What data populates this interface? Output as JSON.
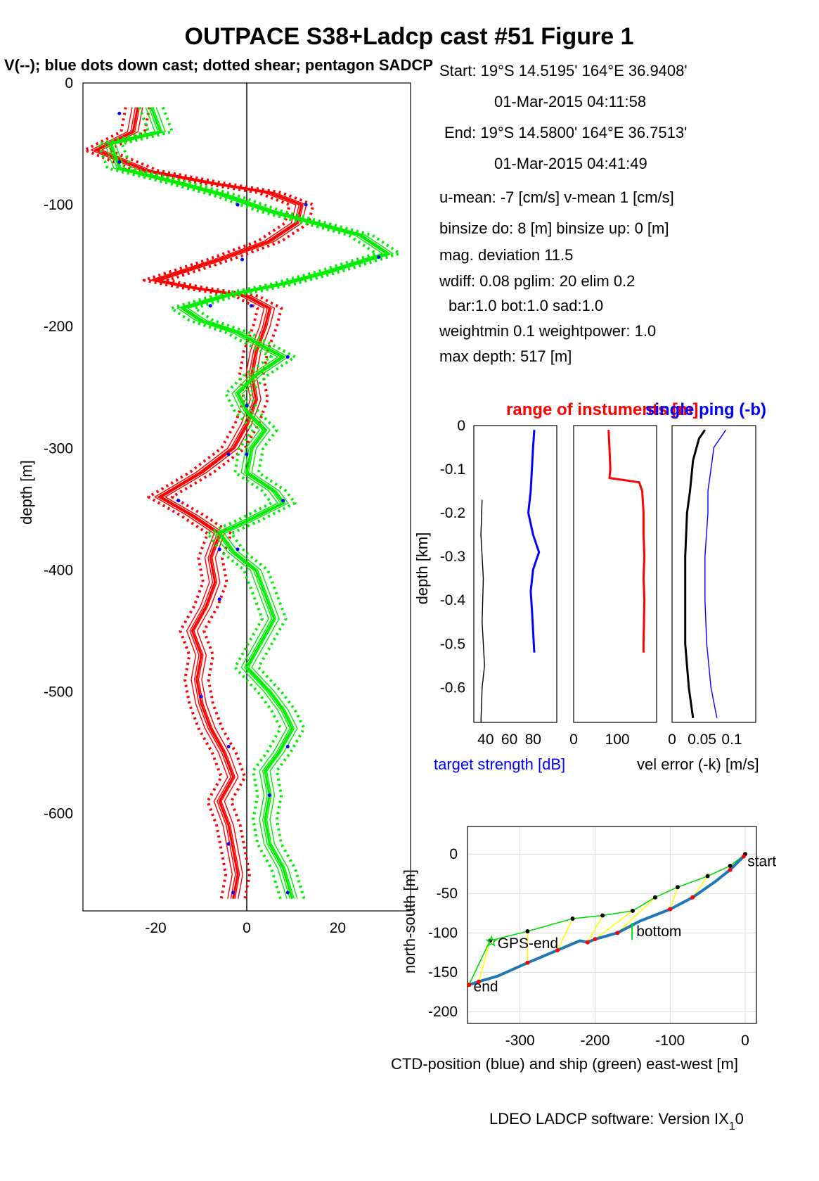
{
  "figure": {
    "title": "OUTPACE S38+Ladcp cast #51  Figure 1",
    "subtitle": "V(--); blue dots down cast; dotted shear; pentagon SADCP",
    "footer": "LDEO LADCP software: Version IX",
    "footer_sub": "1",
    "footer_tail": "0"
  },
  "info": [
    "Start:  19°S 14.5195'      164°E 36.9408'",
    "01-Mar-2015 04:11:58",
    "End:  19°S 14.5800'      164°E 36.7513'",
    "01-Mar-2015 04:41:49",
    "u-mean:  -7 [cm/s]     v-mean   1 [cm/s]",
    "binsize do: 8 [m]  binsize up:  0 [m]",
    "mag. deviation 11.5",
    "wdiff: 0.08  pglim: 20  elim 0.2",
    "bar:1.0 bot:1.0 sad:1.0",
    "weightmin 0.1  weightpower: 1.0",
    "max depth: 517 [m]"
  ],
  "colors": {
    "u": "#ff0000",
    "v": "#00ee00",
    "dots": "#0000ff",
    "ctd": "#1f77b4",
    "ship": "#00dd00",
    "link": "#ffff00"
  },
  "chart_data": [
    {
      "id": "velocity",
      "type": "line",
      "ylabel": "depth [m]",
      "xlim": [
        -36,
        36
      ],
      "ylim": [
        -680,
        0
      ],
      "xticks": [
        -20,
        0,
        20
      ],
      "yticks": [
        0,
        -100,
        -200,
        -300,
        -400,
        -500,
        -600
      ],
      "series": [
        {
          "color": "red",
          "points": [
            [
              -24,
              -20
            ],
            [
              -25,
              -40
            ],
            [
              -33,
              -55
            ],
            [
              -22,
              -72
            ],
            [
              -8,
              -82
            ],
            [
              5,
              -90
            ],
            [
              12,
              -100
            ],
            [
              11,
              -115
            ],
            [
              5,
              -130
            ],
            [
              -6,
              -145
            ],
            [
              -20,
              -162
            ],
            [
              -12,
              -168
            ],
            [
              0,
              -175
            ],
            [
              5,
              -185
            ],
            [
              4,
              -200
            ],
            [
              2,
              -220
            ],
            [
              1,
              -240
            ],
            [
              2,
              -260
            ],
            [
              0,
              -280
            ],
            [
              -3,
              -300
            ],
            [
              -10,
              -320
            ],
            [
              -19,
              -340
            ],
            [
              -12,
              -355
            ],
            [
              -6,
              -370
            ],
            [
              -8,
              -390
            ],
            [
              -7,
              -410
            ],
            [
              -9,
              -430
            ],
            [
              -12,
              -450
            ],
            [
              -10,
              -470
            ],
            [
              -11,
              -490
            ],
            [
              -10,
              -510
            ],
            [
              -8,
              -530
            ],
            [
              -5,
              -550
            ],
            [
              -3,
              -570
            ],
            [
              -6,
              -590
            ],
            [
              -4,
              -610
            ],
            [
              -3,
              -630
            ],
            [
              -2,
              -650
            ],
            [
              -3,
              -670
            ]
          ]
        },
        {
          "color": "green",
          "points": [
            [
              -21,
              -20
            ],
            [
              -19,
              -40
            ],
            [
              -30,
              -50
            ],
            [
              -28,
              -70
            ],
            [
              -15,
              -82
            ],
            [
              -5,
              -92
            ],
            [
              5,
              -105
            ],
            [
              15,
              -115
            ],
            [
              25,
              -125
            ],
            [
              31,
              -140
            ],
            [
              18,
              -155
            ],
            [
              8,
              -165
            ],
            [
              -5,
              -175
            ],
            [
              -14,
              -185
            ],
            [
              -10,
              -195
            ],
            [
              -2,
              -205
            ],
            [
              3,
              -215
            ],
            [
              8,
              -225
            ],
            [
              2,
              -240
            ],
            [
              -2,
              -255
            ],
            [
              0,
              -270
            ],
            [
              4,
              -285
            ],
            [
              1,
              -300
            ],
            [
              0,
              -320
            ],
            [
              6,
              -335
            ],
            [
              8,
              -345
            ],
            [
              0,
              -360
            ],
            [
              -6,
              -370
            ],
            [
              -3,
              -385
            ],
            [
              2,
              -400
            ],
            [
              4,
              -420
            ],
            [
              6,
              -440
            ],
            [
              3,
              -460
            ],
            [
              0,
              -480
            ],
            [
              5,
              -500
            ],
            [
              8,
              -515
            ],
            [
              10,
              -530
            ],
            [
              7,
              -550
            ],
            [
              4,
              -565
            ],
            [
              5,
              -585
            ],
            [
              4,
              -605
            ],
            [
              5,
              -625
            ],
            [
              8,
              -645
            ],
            [
              10,
              -670
            ]
          ]
        }
      ],
      "dots": [
        [
          -28,
          -25
        ],
        [
          -28,
          -65
        ],
        [
          -2,
          -100
        ],
        [
          13,
          -100
        ],
        [
          -1,
          -145
        ],
        [
          29,
          -143
        ],
        [
          -8,
          -183
        ],
        [
          1,
          -183
        ],
        [
          9,
          -225
        ],
        [
          0,
          -265
        ],
        [
          -4,
          -305
        ],
        [
          0,
          -305
        ],
        [
          -15,
          -343
        ],
        [
          8,
          -343
        ],
        [
          -6,
          -383
        ],
        [
          -2,
          -383
        ],
        [
          -6,
          -424
        ],
        [
          -10,
          -504
        ],
        [
          -4,
          -545
        ],
        [
          9,
          -545
        ],
        [
          5,
          -585
        ],
        [
          -4,
          -625
        ],
        [
          -3,
          -665
        ],
        [
          9,
          -665
        ]
      ]
    },
    {
      "id": "target-strength",
      "type": "line",
      "ylabel": "depth [km]",
      "xlabel": "target strength [dB]",
      "xlim": [
        30,
        100
      ],
      "ylim": [
        -0.68,
        0
      ],
      "xticks": [
        "40",
        "60",
        "80"
      ],
      "yticks": [
        "0",
        "-0.1",
        "-0.2",
        "-0.3",
        "-0.4",
        "-0.5",
        "-0.6"
      ],
      "series": [
        {
          "color": "blue",
          "points": [
            [
              81,
              -0.01
            ],
            [
              80,
              -0.05
            ],
            [
              79,
              -0.1
            ],
            [
              78,
              -0.15
            ],
            [
              76,
              -0.2
            ],
            [
              80,
              -0.25
            ],
            [
              85,
              -0.29
            ],
            [
              80,
              -0.33
            ],
            [
              78,
              -0.38
            ],
            [
              79,
              -0.42
            ],
            [
              80,
              -0.47
            ],
            [
              81,
              -0.52
            ]
          ]
        },
        {
          "color": "black",
          "points": [
            [
              37,
              -0.17
            ],
            [
              36,
              -0.25
            ],
            [
              38,
              -0.35
            ],
            [
              37,
              -0.45
            ],
            [
              39,
              -0.55
            ],
            [
              37,
              -0.6
            ],
            [
              36,
              -0.68
            ]
          ]
        }
      ]
    },
    {
      "id": "range",
      "type": "line",
      "xlabel": "range of instuments [m]",
      "xlim": [
        0,
        190
      ],
      "ylim": [
        -0.68,
        0
      ],
      "xticks": [
        "0",
        "100"
      ],
      "series": [
        {
          "color": "red",
          "points": [
            [
              80,
              -0.01
            ],
            [
              82,
              -0.05
            ],
            [
              84,
              -0.1
            ],
            [
              82,
              -0.12
            ],
            [
              150,
              -0.13
            ],
            [
              157,
              -0.15
            ],
            [
              160,
              -0.2
            ],
            [
              160,
              -0.25
            ],
            [
              162,
              -0.3
            ],
            [
              160,
              -0.35
            ],
            [
              162,
              -0.4
            ],
            [
              160,
              -0.5
            ],
            [
              160,
              -0.52
            ]
          ]
        }
      ]
    },
    {
      "id": "vel-error",
      "type": "line",
      "xlabel": "vel error (-k) [m/s]",
      "title": "single ping (-b)",
      "xlim": [
        0,
        0.14
      ],
      "ylim": [
        -0.68,
        0
      ],
      "xticks": [
        "0",
        "0.05",
        "0.1"
      ],
      "series": [
        {
          "color": "black",
          "points": [
            [
              0.055,
              -0.01
            ],
            [
              0.045,
              -0.03
            ],
            [
              0.035,
              -0.08
            ],
            [
              0.03,
              -0.15
            ],
            [
              0.025,
              -0.2
            ],
            [
              0.022,
              -0.3
            ],
            [
              0.022,
              -0.4
            ],
            [
              0.022,
              -0.5
            ],
            [
              0.028,
              -0.6
            ],
            [
              0.035,
              -0.67
            ]
          ]
        },
        {
          "color": "blue",
          "points": [
            [
              0.09,
              -0.01
            ],
            [
              0.07,
              -0.05
            ],
            [
              0.065,
              -0.1
            ],
            [
              0.06,
              -0.15
            ],
            [
              0.06,
              -0.2
            ],
            [
              0.055,
              -0.3
            ],
            [
              0.055,
              -0.4
            ],
            [
              0.058,
              -0.5
            ],
            [
              0.065,
              -0.6
            ],
            [
              0.075,
              -0.67
            ]
          ]
        }
      ]
    },
    {
      "id": "track",
      "type": "line",
      "xlabel": "CTD-position (blue) and ship (green) east-west [m]",
      "ylabel": "north-south [m]",
      "xlim": [
        -370,
        15
      ],
      "ylim": [
        -215,
        35
      ],
      "xticks": [
        "-300",
        "-200",
        "-100",
        "0"
      ],
      "yticks": [
        "0",
        "-50",
        "-100",
        "-150",
        "-200"
      ],
      "series": [
        {
          "color": "blue",
          "name": "CTD",
          "points": [
            [
              -2,
              -3
            ],
            [
              -20,
              -20
            ],
            [
              -40,
              -35
            ],
            [
              -70,
              -55
            ],
            [
              -100,
              -70
            ],
            [
              -140,
              -85
            ],
            [
              -170,
              -100
            ],
            [
              -200,
              -108
            ],
            [
              -210,
              -112
            ],
            [
              -220,
              -110
            ],
            [
              -250,
              -122
            ],
            [
              -290,
              -138
            ],
            [
              -330,
              -155
            ],
            [
              -355,
              -162
            ],
            [
              -368,
              -166
            ]
          ]
        },
        {
          "color": "green",
          "name": "ship",
          "points": [
            [
              0,
              0
            ],
            [
              -20,
              -15
            ],
            [
              -50,
              -28
            ],
            [
              -90,
              -42
            ],
            [
              -120,
              -55
            ],
            [
              -150,
              -72
            ],
            [
              -190,
              -78
            ],
            [
              -230,
              -82
            ],
            [
              -290,
              -98
            ],
            [
              -340,
              -110
            ],
            [
              -368,
              -166
            ]
          ]
        }
      ],
      "labels": [
        {
          "text": "start",
          "x": 3,
          "y": -9
        },
        {
          "text": "bottom",
          "x": -145,
          "y": -98
        },
        {
          "text": "GPS-end",
          "x": -330,
          "y": -113
        },
        {
          "text": "end",
          "x": -362,
          "y": -168
        }
      ]
    }
  ]
}
